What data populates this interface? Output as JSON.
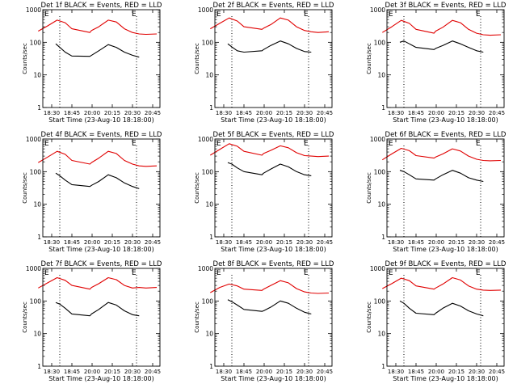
{
  "colors": {
    "events": "#000000",
    "lld": "#e00000",
    "axis": "#000000",
    "background": "#ffffff"
  },
  "x_tick_labels": [
    "18:30",
    "18:45",
    "20:00",
    "20:15",
    "20:30",
    "20:45"
  ],
  "y_tick_labels": [
    "1",
    "10",
    "100",
    "1000"
  ],
  "ylabel": "Counts/sec",
  "xlabel": "Start Time (23-Aug-10 18:18:00)",
  "chart_data": [
    {
      "type": "line",
      "title": "Det 1f BLACK = Events, RED = LLD",
      "xlabel": "Start Time (23-Aug-10 18:18:00)",
      "ylabel": "Counts/sec",
      "yscale": "log",
      "ylim": [
        1,
        1000
      ],
      "markers": [
        "E",
        "E"
      ],
      "series": [
        {
          "name": "Events",
          "color": "#000000",
          "x": [
            "18:33",
            "18:36",
            "18:40",
            "18:45",
            "19:52",
            "19:58",
            "20:05",
            "20:12",
            "20:18",
            "20:24",
            "20:30",
            "20:35"
          ],
          "values": [
            90,
            70,
            50,
            38,
            37,
            40,
            55,
            85,
            70,
            50,
            40,
            35
          ]
        },
        {
          "name": "LLD",
          "color": "#e00000",
          "x": [
            "18:20",
            "18:27",
            "18:34",
            "18:40",
            "18:45",
            "19:52",
            "19:58",
            "20:05",
            "20:12",
            "20:18",
            "20:24",
            "20:30",
            "20:35",
            "20:40",
            "20:48"
          ],
          "values": [
            220,
            320,
            480,
            400,
            260,
            200,
            230,
            300,
            480,
            420,
            260,
            200,
            180,
            175,
            180
          ]
        }
      ]
    },
    {
      "type": "line",
      "title": "Det 2f BLACK = Events, RED = LLD",
      "xlabel": "Start Time (23-Aug-10 18:18:00)",
      "ylabel": "Counts/sec",
      "yscale": "log",
      "ylim": [
        1,
        1000
      ],
      "markers": [
        "E",
        "E"
      ],
      "series": [
        {
          "name": "Events",
          "color": "#000000",
          "x": [
            "18:33",
            "18:36",
            "18:40",
            "18:45",
            "19:52",
            "19:58",
            "20:05",
            "20:12",
            "20:18",
            "20:24",
            "20:30",
            "20:35"
          ],
          "values": [
            90,
            72,
            55,
            50,
            55,
            60,
            80,
            110,
            90,
            65,
            52,
            50
          ]
        },
        {
          "name": "LLD",
          "color": "#e00000",
          "x": [
            "18:20",
            "18:27",
            "18:34",
            "18:40",
            "18:45",
            "19:52",
            "19:58",
            "20:05",
            "20:12",
            "20:18",
            "20:24",
            "20:30",
            "20:35",
            "20:40",
            "20:48"
          ],
          "values": [
            260,
            380,
            560,
            450,
            300,
            250,
            270,
            350,
            560,
            480,
            300,
            230,
            210,
            200,
            210
          ]
        }
      ]
    },
    {
      "type": "line",
      "title": "Det 3f BLACK = Events, RED = LLD",
      "xlabel": "Start Time (23-Aug-10 18:18:00)",
      "ylabel": "Counts/sec",
      "yscale": "log",
      "ylim": [
        1,
        1000
      ],
      "markers": [
        "E",
        "E"
      ],
      "series": [
        {
          "name": "Events",
          "color": "#000000",
          "x": [
            "18:33",
            "18:36",
            "18:40",
            "18:45",
            "19:52",
            "19:58",
            "20:05",
            "20:12",
            "20:18",
            "20:24",
            "20:30",
            "20:35"
          ],
          "values": [
            100,
            110,
            90,
            70,
            60,
            65,
            80,
            110,
            90,
            70,
            55,
            50
          ]
        },
        {
          "name": "LLD",
          "color": "#e00000",
          "x": [
            "18:20",
            "18:27",
            "18:34",
            "18:40",
            "18:45",
            "19:52",
            "19:58",
            "20:05",
            "20:12",
            "20:18",
            "20:24",
            "20:30",
            "20:35",
            "20:40",
            "20:48"
          ],
          "values": [
            200,
            300,
            470,
            380,
            250,
            190,
            220,
            290,
            470,
            400,
            250,
            190,
            170,
            165,
            170
          ]
        }
      ]
    },
    {
      "type": "line",
      "title": "Det 4f BLACK = Events, RED = LLD",
      "xlabel": "Start Time (23-Aug-10 18:18:00)",
      "ylabel": "Counts/sec",
      "yscale": "log",
      "ylim": [
        1,
        1000
      ],
      "markers": [
        "E",
        "E"
      ],
      "series": [
        {
          "name": "Events",
          "color": "#000000",
          "x": [
            "18:33",
            "18:36",
            "18:40",
            "18:45",
            "19:52",
            "19:58",
            "20:05",
            "20:12",
            "20:18",
            "20:24",
            "20:30",
            "20:35"
          ],
          "values": [
            90,
            75,
            55,
            40,
            35,
            38,
            50,
            80,
            65,
            45,
            35,
            30
          ]
        },
        {
          "name": "LLD",
          "color": "#e00000",
          "x": [
            "18:20",
            "18:27",
            "18:34",
            "18:40",
            "18:45",
            "19:52",
            "19:58",
            "20:05",
            "20:12",
            "20:18",
            "20:24",
            "20:30",
            "20:35",
            "20:40",
            "20:48"
          ],
          "values": [
            190,
            280,
            420,
            340,
            220,
            170,
            190,
            260,
            420,
            360,
            220,
            170,
            150,
            145,
            150
          ]
        }
      ]
    },
    {
      "type": "line",
      "title": "Det 5f BLACK = Events, RED = LLD",
      "xlabel": "Start Time (23-Aug-10 18:18:00)",
      "ylabel": "Counts/sec",
      "yscale": "log",
      "ylim": [
        1,
        1000
      ],
      "markers": [
        "E",
        "E"
      ],
      "series": [
        {
          "name": "Events",
          "color": "#000000",
          "x": [
            "18:33",
            "18:36",
            "18:40",
            "18:45",
            "19:52",
            "19:58",
            "20:05",
            "20:12",
            "20:18",
            "20:24",
            "20:30",
            "20:35"
          ],
          "values": [
            190,
            170,
            130,
            100,
            80,
            90,
            120,
            170,
            140,
            100,
            80,
            75
          ]
        },
        {
          "name": "LLD",
          "color": "#e00000",
          "x": [
            "18:20",
            "18:27",
            "18:34",
            "18:40",
            "18:45",
            "19:52",
            "19:58",
            "20:05",
            "20:12",
            "20:18",
            "20:24",
            "20:30",
            "20:35",
            "20:40",
            "20:48"
          ],
          "values": [
            320,
            480,
            720,
            600,
            420,
            320,
            360,
            450,
            620,
            540,
            380,
            310,
            300,
            290,
            300
          ]
        }
      ]
    },
    {
      "type": "line",
      "title": "Det 6f BLACK = Events, RED = LLD",
      "xlabel": "Start Time (23-Aug-10 18:18:00)",
      "ylabel": "Counts/sec",
      "yscale": "log",
      "ylim": [
        1,
        1000
      ],
      "markers": [
        "E",
        "E"
      ],
      "series": [
        {
          "name": "Events",
          "color": "#000000",
          "x": [
            "18:33",
            "18:36",
            "18:40",
            "18:45",
            "19:52",
            "19:58",
            "20:05",
            "20:12",
            "20:18",
            "20:24",
            "20:30",
            "20:35"
          ],
          "values": [
            110,
            100,
            80,
            60,
            55,
            60,
            80,
            110,
            90,
            65,
            55,
            50
          ]
        },
        {
          "name": "LLD",
          "color": "#e00000",
          "x": [
            "18:20",
            "18:27",
            "18:34",
            "18:40",
            "18:45",
            "19:52",
            "19:58",
            "20:05",
            "20:12",
            "20:18",
            "20:24",
            "20:30",
            "20:35",
            "20:40",
            "20:48"
          ],
          "values": [
            230,
            350,
            520,
            440,
            310,
            260,
            280,
            350,
            500,
            430,
            300,
            240,
            220,
            215,
            220
          ]
        }
      ]
    },
    {
      "type": "line",
      "title": "Det 7f BLACK = Events, RED = LLD",
      "xlabel": "Start Time (23-Aug-10 18:18:00)",
      "ylabel": "Counts/sec",
      "yscale": "log",
      "ylim": [
        1,
        1000
      ],
      "markers": [
        "E",
        "E"
      ],
      "series": [
        {
          "name": "Events",
          "color": "#000000",
          "x": [
            "18:33",
            "18:36",
            "18:40",
            "18:45",
            "19:52",
            "19:58",
            "20:05",
            "20:12",
            "20:18",
            "20:24",
            "20:30",
            "20:35"
          ],
          "values": [
            90,
            80,
            60,
            40,
            35,
            40,
            55,
            90,
            75,
            50,
            38,
            35
          ]
        },
        {
          "name": "LLD",
          "color": "#e00000",
          "x": [
            "18:20",
            "18:27",
            "18:34",
            "18:40",
            "18:45",
            "19:52",
            "19:58",
            "20:05",
            "20:12",
            "20:18",
            "20:24",
            "20:30",
            "20:35",
            "20:40",
            "20:48"
          ],
          "values": [
            250,
            360,
            520,
            430,
            300,
            230,
            260,
            340,
            520,
            450,
            300,
            250,
            260,
            250,
            260
          ]
        }
      ]
    },
    {
      "type": "line",
      "title": "Det 8f BLACK = Events, RED = LLD",
      "xlabel": "Start Time (23-Aug-10 18:18:00)",
      "ylabel": "Counts/sec",
      "yscale": "log",
      "ylim": [
        1,
        1000
      ],
      "markers": [
        "E",
        "E"
      ],
      "series": [
        {
          "name": "Events",
          "color": "#000000",
          "x": [
            "18:33",
            "18:36",
            "18:40",
            "18:45",
            "19:52",
            "19:58",
            "20:05",
            "20:12",
            "20:18",
            "20:24",
            "20:30",
            "20:35"
          ],
          "values": [
            110,
            95,
            75,
            55,
            48,
            50,
            65,
            100,
            85,
            60,
            45,
            40
          ]
        },
        {
          "name": "LLD",
          "color": "#e00000",
          "x": [
            "18:20",
            "18:27",
            "18:34",
            "18:40",
            "18:45",
            "19:52",
            "19:58",
            "20:05",
            "20:12",
            "20:18",
            "20:24",
            "20:30",
            "20:35",
            "20:40",
            "20:48"
          ],
          "values": [
            180,
            260,
            330,
            290,
            230,
            210,
            230,
            300,
            420,
            360,
            240,
            190,
            175,
            170,
            175
          ]
        }
      ]
    },
    {
      "type": "line",
      "title": "Det 9f BLACK = Events, RED = LLD",
      "xlabel": "Start Time (23-Aug-10 18:18:00)",
      "ylabel": "Counts/sec",
      "yscale": "log",
      "ylim": [
        1,
        1000
      ],
      "markers": [
        "E",
        "E"
      ],
      "series": [
        {
          "name": "Events",
          "color": "#000000",
          "x": [
            "18:33",
            "18:36",
            "18:40",
            "18:45",
            "19:52",
            "19:58",
            "20:05",
            "20:12",
            "20:18",
            "20:24",
            "20:30",
            "20:35"
          ],
          "values": [
            100,
            85,
            60,
            42,
            38,
            42,
            60,
            85,
            70,
            50,
            40,
            35
          ]
        },
        {
          "name": "LLD",
          "color": "#e00000",
          "x": [
            "18:20",
            "18:27",
            "18:34",
            "18:40",
            "18:45",
            "19:52",
            "19:58",
            "20:05",
            "20:12",
            "20:18",
            "20:24",
            "20:30",
            "20:35",
            "20:40",
            "20:48"
          ],
          "values": [
            240,
            340,
            500,
            420,
            290,
            230,
            250,
            330,
            520,
            440,
            290,
            230,
            215,
            210,
            215
          ]
        }
      ]
    }
  ]
}
